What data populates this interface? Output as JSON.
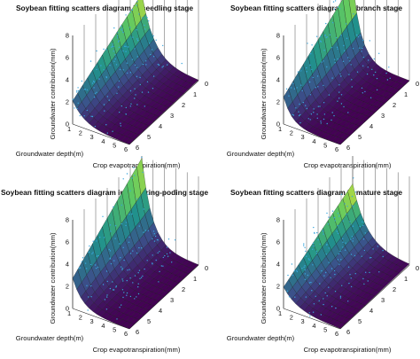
{
  "chart_data": [
    {
      "type": "scatter",
      "title": "Soybean fitting scatters diagram in seedling stage",
      "xlabel": "Groundwater depth(m)",
      "ylabel": "Crop evapotranspiration(mm)",
      "zlabel": "Groundwater contribution(mm)",
      "depth_ticks": [
        "1",
        "2",
        "3",
        "4",
        "5",
        "6"
      ],
      "et_ticks": [
        "0",
        "1",
        "2",
        "3",
        "4",
        "5",
        "6"
      ],
      "z_ticks": [
        "0",
        "2",
        "4",
        "6",
        "8"
      ],
      "xlim": [
        1,
        6
      ],
      "ylim": [
        0,
        6
      ],
      "zlim": [
        0,
        8
      ],
      "surface_peak": 6.0,
      "surface_decay": 0.9,
      "scatter_max": 8.0,
      "colormap": [
        "#440154",
        "#3b528b",
        "#21918c",
        "#5ec962",
        "#fde725"
      ],
      "scatter_color": "#3aa6dd"
    },
    {
      "type": "scatter",
      "title": "Soybean fitting scatters diagram in branch stage",
      "xlabel": "Groundwater depth(m)",
      "ylabel": "Crop evapotranspiration(mm)",
      "zlabel": "Groundwater contribution(mm)",
      "depth_ticks": [
        "1",
        "2",
        "3",
        "4",
        "5",
        "6"
      ],
      "et_ticks": [
        "0",
        "1",
        "2",
        "3",
        "4",
        "5",
        "6"
      ],
      "z_ticks": [
        "0",
        "2",
        "4",
        "6",
        "8"
      ],
      "xlim": [
        1,
        6
      ],
      "ylim": [
        0,
        6
      ],
      "zlim": [
        0,
        8
      ],
      "surface_peak": 7.0,
      "surface_decay": 1.3,
      "scatter_max": 8.5,
      "colormap": [
        "#440154",
        "#3b528b",
        "#21918c",
        "#5ec962",
        "#fde725"
      ],
      "scatter_color": "#3aa6dd"
    },
    {
      "type": "scatter",
      "title": "Soybean fitting scatters diagram in flowering-poding stage",
      "xlabel": "Groundwater depth(m)",
      "ylabel": "Crop evapotranspiration(mm)",
      "zlabel": "Groundwater contribution(mm)",
      "depth_ticks": [
        "1",
        "2",
        "3",
        "4",
        "5",
        "6"
      ],
      "et_ticks": [
        "0",
        "1",
        "2",
        "3",
        "4",
        "5",
        "6"
      ],
      "z_ticks": [
        "0",
        "2",
        "4",
        "6",
        "8"
      ],
      "xlim": [
        1,
        6
      ],
      "ylim": [
        0,
        6
      ],
      "zlim": [
        0,
        8
      ],
      "surface_peak": 7.8,
      "surface_decay": 1.1,
      "scatter_max": 8.0,
      "colormap": [
        "#440154",
        "#3b528b",
        "#21918c",
        "#5ec962",
        "#fde725"
      ],
      "scatter_color": "#3aa6dd"
    },
    {
      "type": "scatter",
      "title": "Soybean fitting scatters diagram in mature stage",
      "xlabel": "Groundwater depth(m)",
      "ylabel": "Crop evapotranspiration(mm)",
      "zlabel": "Groundwater contribution(mm)",
      "depth_ticks": [
        "1",
        "2",
        "3",
        "4",
        "5",
        "6"
      ],
      "et_ticks": [
        "0",
        "1",
        "2",
        "3",
        "4",
        "5",
        "6"
      ],
      "z_ticks": [
        "0",
        "2",
        "4",
        "6",
        "8"
      ],
      "xlim": [
        1,
        6
      ],
      "ylim": [
        0,
        6
      ],
      "zlim": [
        0,
        8
      ],
      "surface_peak": 5.5,
      "surface_decay": 0.8,
      "scatter_max": 8.0,
      "colormap": [
        "#440154",
        "#3b528b",
        "#21918c",
        "#5ec962",
        "#fde725"
      ],
      "scatter_color": "#3aa6dd"
    }
  ]
}
